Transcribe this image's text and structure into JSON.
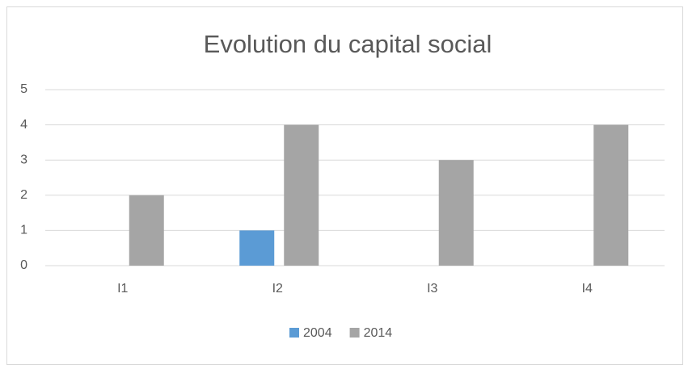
{
  "chart_data": {
    "type": "bar",
    "title": "Evolution du capital social",
    "categories": [
      "I1",
      "I2",
      "I3",
      "I4"
    ],
    "series": [
      {
        "name": "2004",
        "color": "#5b9bd5",
        "values": [
          0,
          1,
          0,
          0
        ]
      },
      {
        "name": "2014",
        "color": "#a5a5a5",
        "values": [
          2,
          4,
          3,
          4
        ]
      }
    ],
    "ylim": [
      0,
      5
    ],
    "yticks": [
      0,
      1,
      2,
      3,
      4,
      5
    ],
    "grid": true,
    "legend": "bottom"
  }
}
